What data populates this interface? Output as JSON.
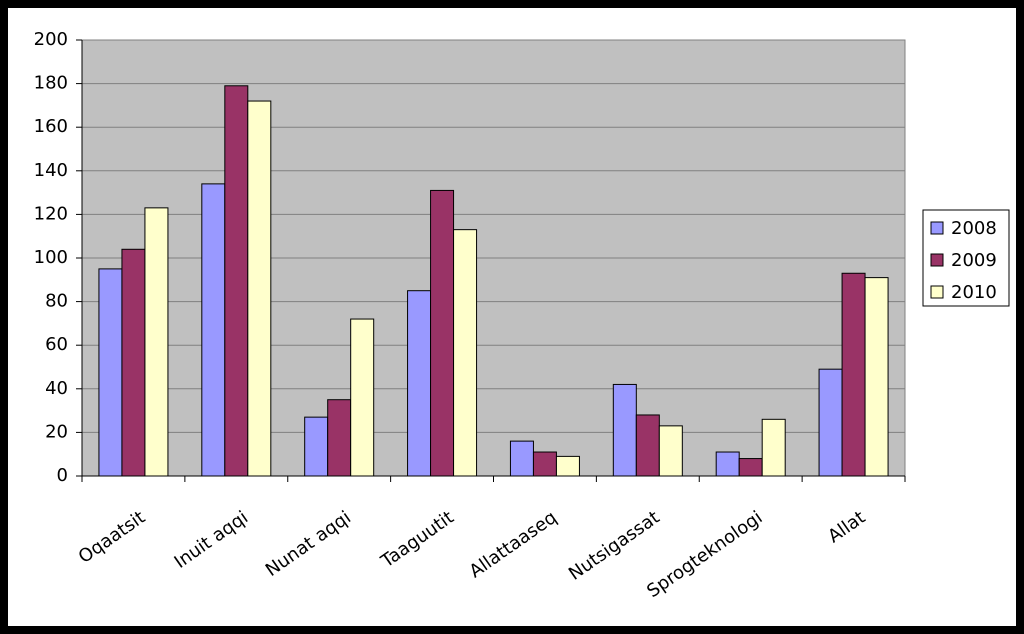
{
  "chart_data": {
    "type": "bar",
    "categories": [
      "Oqaatsit",
      "Inuit aqqi",
      "Nunat aqqi",
      "Taaguutit",
      "Allattaaseq",
      "Nutsigassat",
      "Sprogteknologi",
      "Allat"
    ],
    "series": [
      {
        "name": "2008",
        "color": "#9999ff",
        "values": [
          95,
          134,
          27,
          85,
          16,
          42,
          11,
          49
        ]
      },
      {
        "name": "2009",
        "color": "#993366",
        "values": [
          104,
          179,
          35,
          131,
          11,
          28,
          8,
          93
        ]
      },
      {
        "name": "2010",
        "color": "#ffffcc",
        "values": [
          123,
          172,
          72,
          113,
          9,
          23,
          26,
          91
        ]
      }
    ],
    "ylim": [
      0,
      200
    ],
    "yticks": [
      0,
      20,
      40,
      60,
      80,
      100,
      120,
      140,
      160,
      180,
      200
    ],
    "grid": true,
    "legend": "right"
  }
}
